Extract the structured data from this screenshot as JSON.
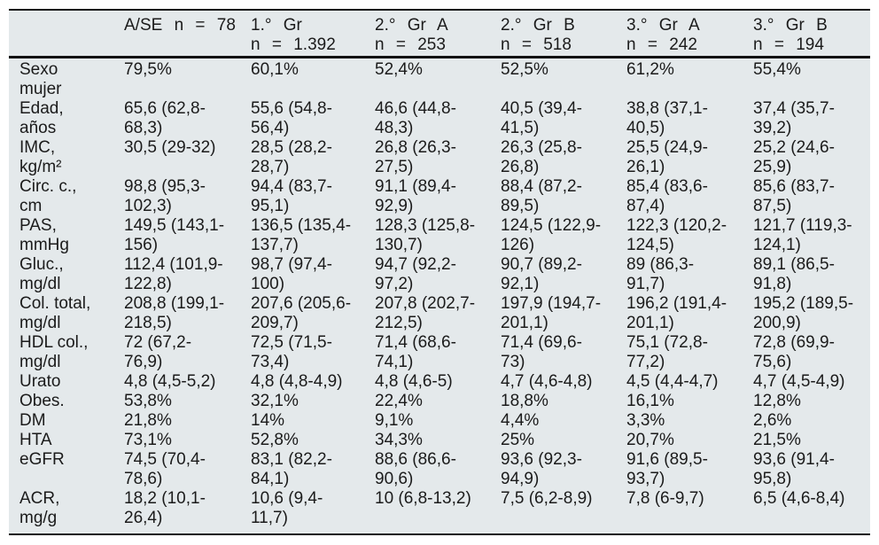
{
  "colors": {
    "page_background": "#ffffff",
    "table_background": "#e4e9eb",
    "rule_color": "#121212",
    "text_color": "#1b1b1b"
  },
  "table": {
    "columns": [
      {
        "line1": "",
        "line2": ""
      },
      {
        "line1": "A/SE n = 78",
        "line2": ""
      },
      {
        "line1": "1.° Gr",
        "line2": "n = 1.392"
      },
      {
        "line1": "2.° Gr A",
        "line2": "n = 253"
      },
      {
        "line1": "2.° Gr B",
        "line2": "n = 518"
      },
      {
        "line1": "3.° Gr A",
        "line2": "n = 242"
      },
      {
        "line1": "3.° Gr B",
        "line2": "n = 194"
      }
    ],
    "rows": [
      {
        "label": "Sexo mujer",
        "values": [
          "79,5%",
          "60,1%",
          "52,4%",
          "52,5%",
          "61,2%",
          "55,4%"
        ]
      },
      {
        "label": "Edad, años",
        "values": [
          "65,6 (62,8-68,3)",
          "55,6 (54,8-56,4)",
          "46,6 (44,8-48,3)",
          "40,5 (39,4-41,5)",
          "38,8 (37,1-40,5)",
          "37,4 (35,7-39,2)"
        ]
      },
      {
        "label": "IMC, kg/m²",
        "values": [
          "30,5 (29-32)",
          "28,5 (28,2-28,7)",
          "26,8 (26,3-27,5)",
          "26,3 (25,8-26,8)",
          "25,5 (24,9-26,1)",
          "25,2 (24,6-25,9)"
        ]
      },
      {
        "label": "Circ. c., cm",
        "values": [
          "98,8 (95,3-102,3)",
          "94,4 (83,7-95,1)",
          "91,1 (89,4-92,9)",
          "88,4 (87,2-89,5)",
          "85,4 (83,6-87,4)",
          "85,6 (83,7-87,5)"
        ]
      },
      {
        "label": "PAS, mmHg",
        "values": [
          "149,5 (143,1-156)",
          "136,5 (135,4-137,7)",
          "128,3 (125,8-130,7)",
          "124,5 (122,9-126)",
          "122,3 (120,2-124,5)",
          "121,7 (119,3-124,1)"
        ]
      },
      {
        "label": "Gluc., mg/dl",
        "values": [
          "112,4 (101,9-122,8)",
          "98,7 (97,4-100)",
          "94,7 (92,2-97,2)",
          "90,7 (89,2-92,1)",
          "89 (86,3-91,7)",
          "89,1 (86,5-91,8)"
        ]
      },
      {
        "label": "Col. total, mg/dl",
        "values": [
          "208,8 (199,1-218,5)",
          "207,6 (205,6-209,7)",
          "207,8 (202,7-212,5)",
          "197,9 (194,7-201,1)",
          "196,2 (191,4-201,1)",
          "195,2 (189,5-200,9)"
        ]
      },
      {
        "label": "HDL col., mg/dl",
        "values": [
          "72 (67,2-76,9)",
          "72,5 (71,5-73,4)",
          "71,4 (68,6-74,1)",
          "71,4 (69,6-73)",
          "75,1 (72,8-77,2)",
          "72,8 (69,9-75,6)"
        ]
      },
      {
        "label": "Urato",
        "values": [
          "4,8 (4,5-5,2)",
          "4,8 (4,8-4,9)",
          "4,8 (4,6-5)",
          "4,7 (4,6-4,8)",
          "4,5 (4,4-4,7)",
          "4,7 (4,5-4,9)"
        ]
      },
      {
        "label": "Obes.",
        "values": [
          "53,8%",
          "32,1%",
          "22,4%",
          "18,8%",
          "16,1%",
          "12,8%"
        ]
      },
      {
        "label": "DM",
        "values": [
          "21,8%",
          "14%",
          "9,1%",
          "4,4%",
          "3,3%",
          "2,6%"
        ]
      },
      {
        "label": "HTA",
        "values": [
          "73,1%",
          "52,8%",
          "34,3%",
          "25%",
          "20,7%",
          "21,5%"
        ]
      },
      {
        "label": "eGFR",
        "values": [
          "74,5 (70,4-78,6)",
          "83,1 (82,2-84,1)",
          "88,6 (86,6-90,6)",
          "93,6 (92,3-94,9)",
          "91,6 (89,5-93,7)",
          "93,6 (91,4-95,8)"
        ]
      },
      {
        "label": "ACR, mg/g",
        "values": [
          "18,2 (10,1-26,4)",
          "10,6 (9,4-11,7)",
          "10 (6,8-13,2)",
          "7,5 (6,2-8,9)",
          "7,8 (6-9,7)",
          "6,5 (4,6-8,4)"
        ]
      }
    ]
  }
}
